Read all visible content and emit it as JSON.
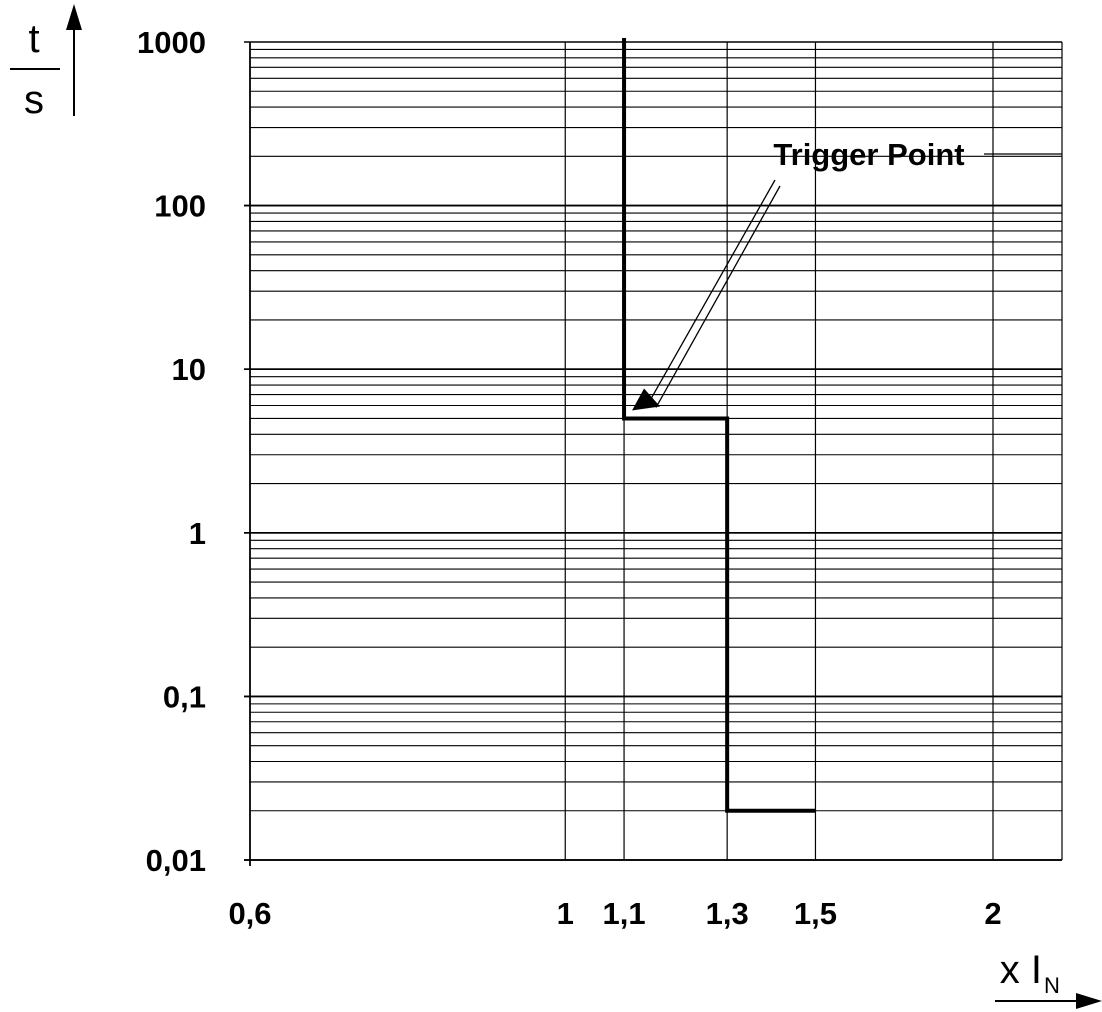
{
  "chart_data": {
    "type": "line",
    "title": "",
    "x_scale": "log",
    "y_scale": "log",
    "xlim": [
      0.6,
      2.25
    ],
    "ylim": [
      0.01,
      1000
    ],
    "x_ticks": [
      {
        "value": 0.6,
        "label": "0,6"
      },
      {
        "value": 1.0,
        "label": "1"
      },
      {
        "value": 1.1,
        "label": "1,1"
      },
      {
        "value": 1.3,
        "label": "1,3"
      },
      {
        "value": 1.5,
        "label": "1,5"
      },
      {
        "value": 2.0,
        "label": "2"
      }
    ],
    "y_ticks": [
      {
        "value": 1000,
        "label": "1000"
      },
      {
        "value": 100,
        "label": "100"
      },
      {
        "value": 10,
        "label": "10"
      },
      {
        "value": 1,
        "label": "1"
      },
      {
        "value": 0.1,
        "label": "0,1"
      },
      {
        "value": 0.01,
        "label": "0,01"
      }
    ],
    "ylabel": {
      "numerator": "t",
      "denominator": "s"
    },
    "xlabel": {
      "main": "x I",
      "subscript": "N"
    },
    "grid": true,
    "series": [
      {
        "points": [
          {
            "x": 1.1,
            "y": 1000
          },
          {
            "x": 1.1,
            "y": 5
          },
          {
            "x": 1.3,
            "y": 5
          },
          {
            "x": 1.3,
            "y": 0.02
          },
          {
            "x": 1.5,
            "y": 0.02
          }
        ]
      }
    ],
    "annotations": [
      {
        "text": "Trigger Point",
        "target": {
          "x": 1.1,
          "y": 5
        }
      }
    ]
  },
  "colors": {
    "line": "#000000",
    "grid": "#000000",
    "background": "#ffffff"
  }
}
